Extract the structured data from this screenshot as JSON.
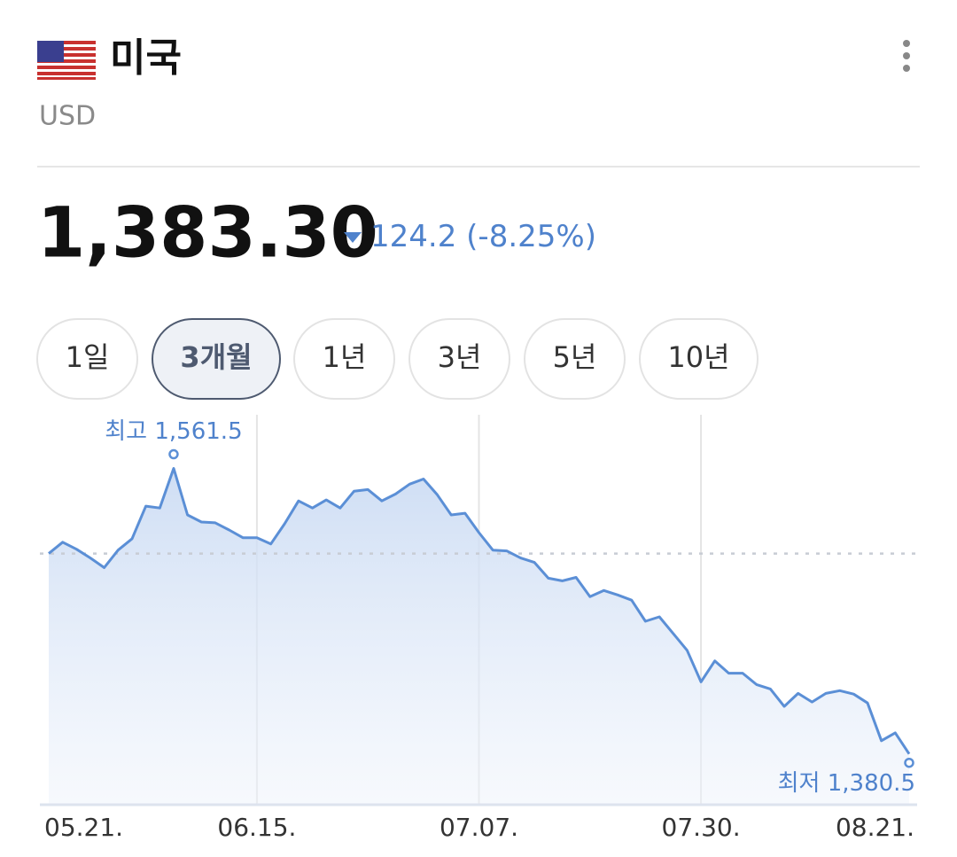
{
  "header": {
    "title": "미국",
    "subtitle": "USD"
  },
  "price": {
    "value": "1,383.30",
    "change": "124.2",
    "change_pct": "(-8.25%)"
  },
  "tabs": [
    {
      "label": "1일",
      "selected": false
    },
    {
      "label": "3개월",
      "selected": true
    },
    {
      "label": "1년",
      "selected": false
    },
    {
      "label": "3년",
      "selected": false
    },
    {
      "label": "5년",
      "selected": false
    },
    {
      "label": "10년",
      "selected": false
    }
  ],
  "chart_data": {
    "type": "line",
    "categories": [
      "05.21.",
      null,
      null,
      null,
      null,
      null,
      null,
      null,
      null,
      null,
      null,
      null,
      null,
      null,
      null,
      "06.15.",
      null,
      null,
      null,
      null,
      null,
      null,
      null,
      null,
      null,
      null,
      null,
      null,
      null,
      null,
      null,
      "07.07.",
      null,
      null,
      null,
      null,
      null,
      null,
      null,
      null,
      null,
      null,
      null,
      null,
      null,
      null,
      null,
      "07.30.",
      null,
      null,
      null,
      null,
      null,
      null,
      null,
      null,
      null,
      null,
      null,
      null,
      null,
      null,
      "08.21."
    ],
    "values": [
      1507.5,
      1514.7,
      1510.3,
      1504.7,
      1498.6,
      1509.7,
      1516.9,
      1537.6,
      1536.4,
      1561.5,
      1532.0,
      1527.5,
      1527.0,
      1522.5,
      1517.5,
      1517.5,
      1513.6,
      1526.4,
      1540.9,
      1536.4,
      1541.5,
      1536.4,
      1547.0,
      1548.1,
      1540.9,
      1545.3,
      1551.5,
      1554.8,
      1544.8,
      1532.0,
      1533.1,
      1520.8,
      1509.7,
      1509.2,
      1504.7,
      1501.9,
      1491.9,
      1490.2,
      1492.4,
      1480.2,
      1484.1,
      1481.3,
      1478.0,
      1464.6,
      1467.4,
      1456.8,
      1446.2,
      1426.2,
      1439.5,
      1431.7,
      1431.7,
      1424.5,
      1421.7,
      1410.6,
      1418.9,
      1413.4,
      1418.9,
      1420.6,
      1418.4,
      1412.8,
      1388.9,
      1393.9,
      1380.5
    ],
    "value_labels": [
      null,
      null,
      null,
      null,
      null,
      null,
      null,
      null,
      null,
      "최고 1,561.5",
      null,
      null,
      null,
      null,
      null,
      null,
      null,
      null,
      null,
      null,
      null,
      null,
      null,
      null,
      null,
      null,
      null,
      null,
      null,
      null,
      null,
      null,
      null,
      null,
      null,
      null,
      null,
      null,
      null,
      null,
      null,
      null,
      null,
      null,
      null,
      null,
      null,
      null,
      null,
      null,
      null,
      null,
      null,
      null,
      null,
      null,
      null,
      null,
      null,
      null,
      null,
      null,
      "최저 1,380.5"
    ],
    "reference_line": 1507.5,
    "ylim": [
      1350,
      1600
    ],
    "color": "#5b8fd6",
    "grid": true
  }
}
